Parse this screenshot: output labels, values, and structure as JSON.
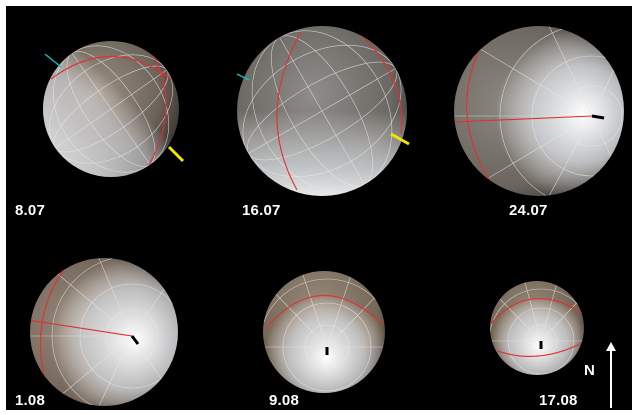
{
  "panels": [
    {
      "date": "8.07"
    },
    {
      "date": "16.07"
    },
    {
      "date": "24.07"
    },
    {
      "date": "1.08"
    },
    {
      "date": "9.08"
    },
    {
      "date": "17.08"
    }
  ],
  "compass": {
    "label": "N"
  },
  "colors": {
    "background": "#000000",
    "label": "#ffffff",
    "graticule": "#e8e8e8",
    "reference_meridian": "#e03030",
    "marker_yellow": "#f5e400",
    "marker_cyan": "#00c8c8",
    "marker_black": "#000000"
  }
}
